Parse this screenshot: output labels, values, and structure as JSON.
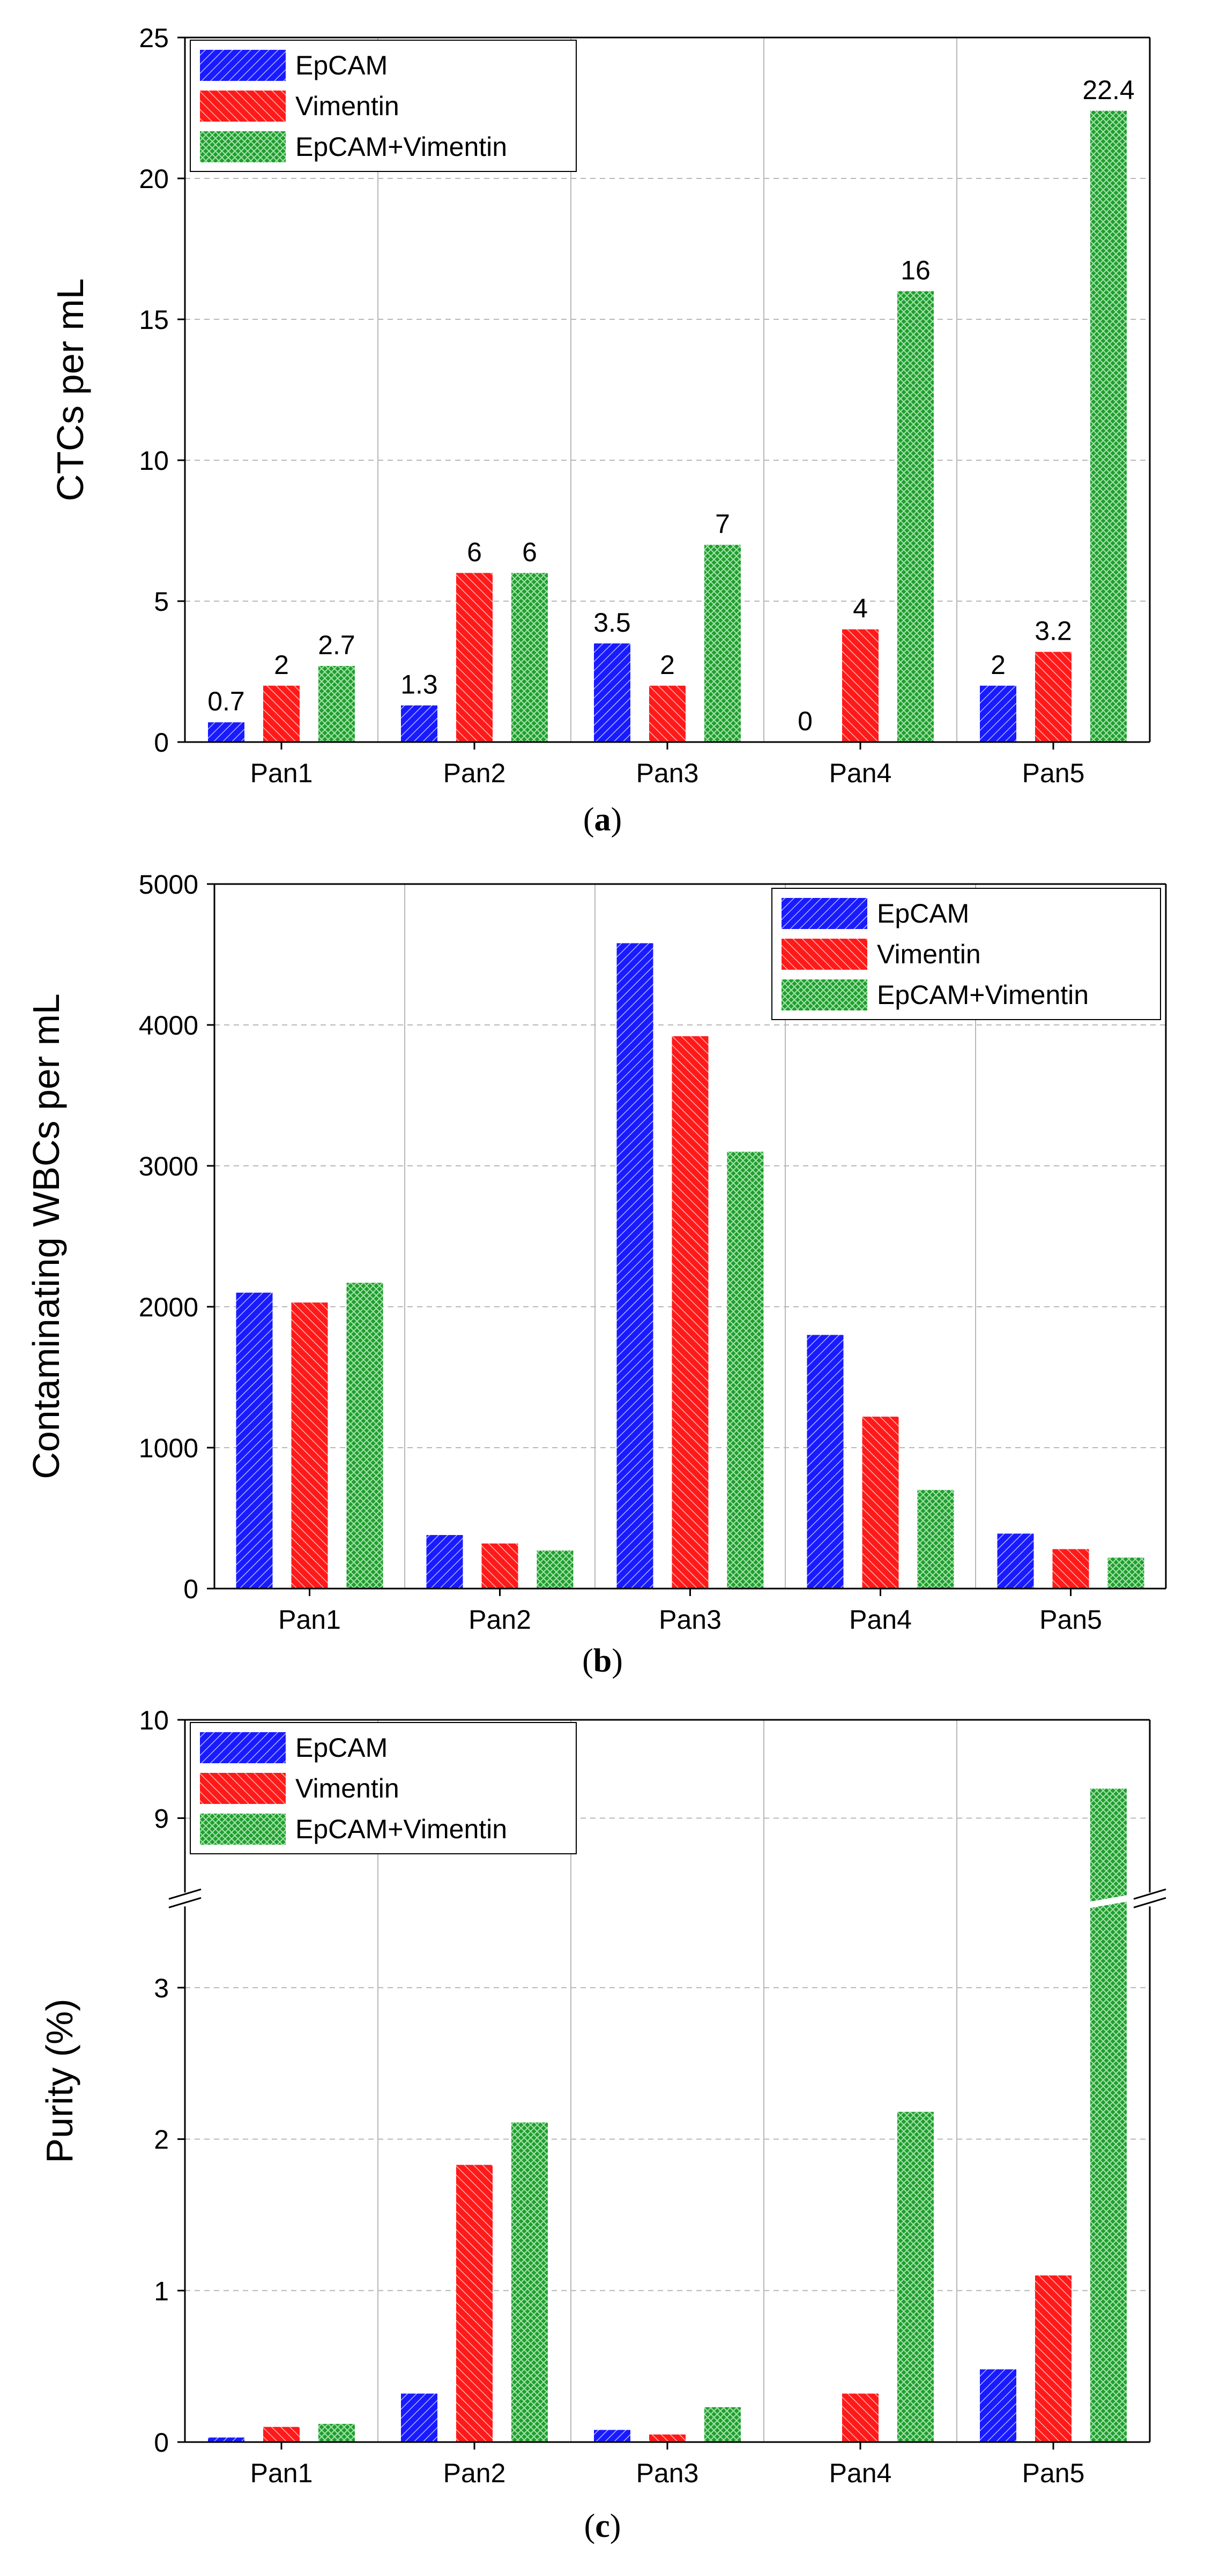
{
  "colors": {
    "epcam": "#1a1aff",
    "vimentin": "#ff1a1a",
    "combo": "#1f9e2e",
    "grid": "#b8b8b8"
  },
  "chart_data": [
    {
      "id": "a",
      "type": "bar",
      "caption_letter": "a",
      "categories": [
        "Pan1",
        "Pan2",
        "Pan3",
        "Pan4",
        "Pan5"
      ],
      "series": [
        {
          "name": "EpCAM",
          "values": [
            0.7,
            1.3,
            3.5,
            0,
            2
          ],
          "labels": [
            "0.7",
            "1.3",
            "3.5",
            "0",
            "2"
          ]
        },
        {
          "name": "Vimentin",
          "values": [
            2,
            6,
            2,
            4,
            3.2
          ],
          "labels": [
            "2",
            "6",
            "2",
            "4",
            "3.2"
          ]
        },
        {
          "name": "EpCAM+Vimentin",
          "values": [
            2.7,
            6,
            7,
            16,
            22.4
          ],
          "labels": [
            "2.7",
            "6",
            "7",
            "16",
            "22.4"
          ]
        }
      ],
      "ylabel": "CTCs per mL",
      "xlabel": "",
      "ylim": [
        0,
        25
      ],
      "yticks": [
        0,
        5,
        10,
        15,
        20,
        25
      ],
      "legend_position": "top-left",
      "grid": "dashed"
    },
    {
      "id": "b",
      "type": "bar",
      "caption_letter": "b",
      "categories": [
        "Pan1",
        "Pan2",
        "Pan3",
        "Pan4",
        "Pan5"
      ],
      "series": [
        {
          "name": "EpCAM",
          "values": [
            2100,
            380,
            4580,
            1800,
            390
          ]
        },
        {
          "name": "Vimentin",
          "values": [
            2030,
            320,
            3920,
            1220,
            280
          ]
        },
        {
          "name": "EpCAM+Vimentin",
          "values": [
            2170,
            270,
            3100,
            700,
            220
          ]
        }
      ],
      "ylabel": "Contaminating WBCs per mL",
      "xlabel": "",
      "ylim": [
        0,
        5000
      ],
      "yticks": [
        0,
        1000,
        2000,
        3000,
        4000,
        5000
      ],
      "legend_position": "top-right",
      "grid": "dashed"
    },
    {
      "id": "c",
      "type": "bar",
      "caption_letter": "c",
      "categories": [
        "Pan1",
        "Pan2",
        "Pan3",
        "Pan4",
        "Pan5"
      ],
      "series": [
        {
          "name": "EpCAM",
          "values": [
            0.03,
            0.32,
            0.08,
            0,
            0.48
          ]
        },
        {
          "name": "Vimentin",
          "values": [
            0.1,
            1.83,
            0.05,
            0.32,
            1.1
          ]
        },
        {
          "name": "EpCAM+Vimentin",
          "values": [
            0.12,
            2.11,
            0.23,
            2.18,
            9.3
          ]
        }
      ],
      "ylabel": "Purity (%)",
      "xlabel": "",
      "ylim": [
        0,
        10
      ],
      "axis_break": {
        "lower_range": [
          0,
          3.6
        ],
        "upper_range": [
          8.2,
          10
        ]
      },
      "yticks": [
        0,
        1,
        2,
        3,
        9,
        10
      ],
      "legend_position": "top-left",
      "grid": "dashed"
    }
  ]
}
